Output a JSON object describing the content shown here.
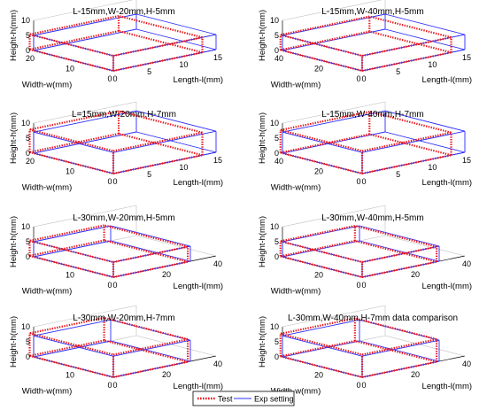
{
  "chart_data": [
    {
      "type": "3d-box",
      "title": "L-15mm,W-20mm,H-5mm",
      "xlabel": "Length-l(mm)",
      "ylabel": "Width-w(mm)",
      "zlabel": "Height-h(mm)",
      "xlim": [
        0,
        15
      ],
      "ylim": [
        0,
        20
      ],
      "zlim": [
        0,
        10
      ],
      "xticks": [
        "0",
        "5",
        "10",
        "15"
      ],
      "yticks": [
        "20",
        "10",
        "0"
      ],
      "zticks": [
        "0",
        "5",
        "10"
      ],
      "series": [
        {
          "name": "Test",
          "l": 13,
          "w": 21,
          "h": 5
        },
        {
          "name": "Exp setting",
          "l": 15,
          "w": 20,
          "h": 5
        }
      ]
    },
    {
      "type": "3d-box",
      "title": "L-15mm,W-40mm,H-5mm",
      "xlabel": "Length-l(mm)",
      "ylabel": "Width-w(mm)",
      "zlabel": "Height-h(mm)",
      "xlim": [
        0,
        15
      ],
      "ylim": [
        0,
        40
      ],
      "zlim": [
        0,
        10
      ],
      "xticks": [
        "0",
        "5",
        "10",
        "15"
      ],
      "yticks": [
        "40",
        "20",
        "0"
      ],
      "zticks": [
        "0",
        "5",
        "10"
      ],
      "series": [
        {
          "name": "Test",
          "l": 13,
          "w": 41,
          "h": 5
        },
        {
          "name": "Exp setting",
          "l": 15,
          "w": 40,
          "h": 5
        }
      ]
    },
    {
      "type": "3d-box",
      "title": "L=15mm,W-20mm,H-7mm",
      "xlabel": "Length-l(mm)",
      "ylabel": "Width-w(mm)",
      "zlabel": "Height-h(mm)",
      "xlim": [
        0,
        15
      ],
      "ylim": [
        0,
        20
      ],
      "zlim": [
        0,
        10
      ],
      "xticks": [
        "0",
        "5",
        "10",
        "15"
      ],
      "yticks": [
        "20",
        "10",
        "0"
      ],
      "zticks": [
        "0",
        "5",
        "10"
      ],
      "series": [
        {
          "name": "Test",
          "l": 13,
          "w": 21,
          "h": 7.5
        },
        {
          "name": "Exp setting",
          "l": 15,
          "w": 20,
          "h": 7
        }
      ]
    },
    {
      "type": "3d-box",
      "title": "L-15mm,W-40mm,H-7mm",
      "xlabel": "Length-l(mm)",
      "ylabel": "Width-w(mm)",
      "zlabel": "Height-h(mm)",
      "xlim": [
        0,
        15
      ],
      "ylim": [
        0,
        40
      ],
      "zlim": [
        0,
        10
      ],
      "xticks": [
        "0",
        "5",
        "10",
        "15"
      ],
      "yticks": [
        "40",
        "20",
        "0"
      ],
      "zticks": [
        "0",
        "5",
        "10"
      ],
      "series": [
        {
          "name": "Test",
          "l": 13,
          "w": 41,
          "h": 7.5
        },
        {
          "name": "Exp setting",
          "l": 15,
          "w": 40,
          "h": 7
        }
      ]
    },
    {
      "type": "3d-box",
      "title": "L-30mm,W-20mm,H-5mm",
      "xlabel": "Length-l(mm)",
      "ylabel": "Width-w(mm)",
      "zlabel": "Height-h(mm)",
      "xlim": [
        0,
        40
      ],
      "ylim": [
        0,
        20
      ],
      "zlim": [
        0,
        10
      ],
      "xticks": [
        "0",
        "20",
        "40"
      ],
      "yticks": [
        "10",
        "0"
      ],
      "zticks": [
        "0",
        "5",
        "10"
      ],
      "series": [
        {
          "name": "Test",
          "l": 29,
          "w": 21,
          "h": 5
        },
        {
          "name": "Exp setting",
          "l": 30,
          "w": 20,
          "h": 5
        }
      ]
    },
    {
      "type": "3d-box",
      "title": "L-30mm,W-40mm,H-5mm",
      "xlabel": "Length-l(mm)",
      "ylabel": "Width-w(mm)",
      "zlabel": "Height-h(mm)",
      "xlim": [
        0,
        40
      ],
      "ylim": [
        0,
        40
      ],
      "zlim": [
        0,
        10
      ],
      "xticks": [
        "0",
        "20",
        "40"
      ],
      "yticks": [
        "20",
        "0"
      ],
      "zticks": [
        "0",
        "5",
        "10"
      ],
      "series": [
        {
          "name": "Test",
          "l": 29,
          "w": 41,
          "h": 5
        },
        {
          "name": "Exp setting",
          "l": 30,
          "w": 40,
          "h": 5
        }
      ]
    },
    {
      "type": "3d-box",
      "title": "L-30mm,W-20mm,H-7mm",
      "xlabel": "Length-l(mm)",
      "ylabel": "Width-w(mm)",
      "zlabel": "Height-h(mm)",
      "xlim": [
        0,
        40
      ],
      "ylim": [
        0,
        20
      ],
      "zlim": [
        0,
        10
      ],
      "xticks": [
        "0",
        "20",
        "40"
      ],
      "yticks": [
        "10",
        "0"
      ],
      "zticks": [
        "0",
        "5",
        "10"
      ],
      "series": [
        {
          "name": "Test",
          "l": 29,
          "w": 21,
          "h": 7.5
        },
        {
          "name": "Exp setting",
          "l": 30,
          "w": 20,
          "h": 7
        }
      ]
    },
    {
      "type": "3d-box",
      "title": "L-30mm,W-40mm,H-7mm data comparison",
      "xlabel": "Length-l(mm)",
      "ylabel": "Width-w(mm)",
      "zlabel": "Height-h(mm)",
      "xlim": [
        0,
        40
      ],
      "ylim": [
        0,
        40
      ],
      "zlim": [
        0,
        10
      ],
      "xticks": [
        "0",
        "20",
        "40"
      ],
      "yticks": [
        "20",
        "0"
      ],
      "zticks": [
        "0",
        "5",
        "10"
      ],
      "series": [
        {
          "name": "Test",
          "l": 29,
          "w": 41,
          "h": 7.5
        },
        {
          "name": "Exp setting",
          "l": 30,
          "w": 40,
          "h": 7
        }
      ]
    }
  ],
  "legend": {
    "position": "bottom-center",
    "entries": [
      {
        "label": "Test",
        "color": "#e8161b",
        "style": "dotted"
      },
      {
        "label": "Exp setting",
        "color": "#2b2bff",
        "style": "solid"
      }
    ]
  }
}
